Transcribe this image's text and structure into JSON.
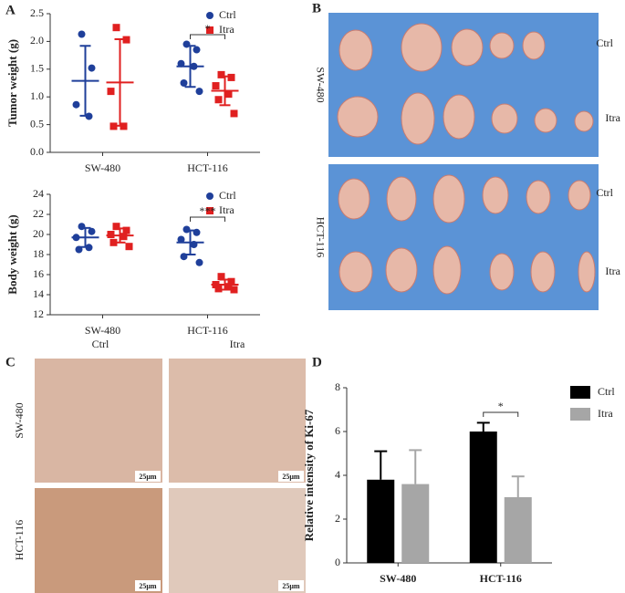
{
  "panel_labels": [
    "A",
    "B",
    "C",
    "D"
  ],
  "chart_data": [
    {
      "type": "scatter",
      "ylabel": "Tumor weight (g)",
      "categories": [
        "SW-480",
        "HCT-116"
      ],
      "ylim": [
        0,
        2.5
      ],
      "yticks": [
        {
          "value": 0,
          "label": "0.0"
        },
        0.5,
        {
          "value": 1,
          "label": "1.0"
        },
        1.5,
        {
          "value": 2,
          "label": "2.0"
        },
        2.5
      ],
      "legend": "top-right",
      "series": [
        {
          "name": "Ctrl",
          "color": "#1f3f9a",
          "marker": "circle",
          "values": [
            [
              2.13,
              1.52,
              0.86,
              0.65
            ],
            [
              1.95,
              1.85,
              1.6,
              1.55,
              1.25,
              1.1
            ]
          ],
          "mean": [
            1.29,
            1.55
          ],
          "error": [
            0.63,
            0.37
          ]
        },
        {
          "name": "Itra",
          "color": "#e02020",
          "marker": "square",
          "values": [
            [
              2.25,
              2.03,
              1.1,
              0.47,
              0.47
            ],
            [
              1.4,
              1.35,
              1.2,
              1.05,
              0.95,
              0.7
            ]
          ],
          "mean": [
            1.26,
            1.11
          ],
          "error": [
            0.78,
            0.26
          ]
        }
      ],
      "annotations": [
        {
          "text": "*",
          "category": "HCT-116"
        }
      ]
    },
    {
      "type": "scatter",
      "ylabel": "Body weight (g)",
      "categories": [
        "SW-480",
        "HCT-116"
      ],
      "ylim": [
        12,
        24
      ],
      "yticks": [
        12,
        14,
        16,
        18,
        20,
        22,
        24
      ],
      "legend": "top-right",
      "series": [
        {
          "name": "Ctrl",
          "color": "#1f3f9a",
          "marker": "circle",
          "values": [
            [
              20.8,
              20.3,
              19.7,
              18.7,
              18.5
            ],
            [
              20.5,
              20.2,
              19.5,
              19,
              17.8,
              17.2
            ]
          ],
          "mean": [
            19.7,
            19.2
          ],
          "error": [
            0.95,
            1.2
          ]
        },
        {
          "name": "Itra",
          "color": "#e02020",
          "marker": "square",
          "values": [
            [
              20.8,
              20.4,
              20,
              19.8,
              19.2,
              18.8
            ],
            [
              15.8,
              15.3,
              15,
              14.8,
              14.6,
              14.5
            ]
          ],
          "mean": [
            19.9,
            15
          ],
          "error": [
            0.7,
            0.5
          ]
        }
      ],
      "annotations": [
        {
          "text": "***",
          "category": "HCT-116"
        }
      ]
    },
    {
      "type": "bar",
      "ylabel": "Relative intensity of Ki-67",
      "categories": [
        "SW-480",
        "HCT-116"
      ],
      "ylim": [
        0,
        8
      ],
      "yticks": [
        0,
        2,
        4,
        6,
        8
      ],
      "legend": "top-right",
      "series": [
        {
          "name": "Ctrl",
          "color": "#000000",
          "values": [
            3.8,
            6.0
          ],
          "error": [
            1.3,
            0.4
          ]
        },
        {
          "name": "Itra",
          "color": "#a6a6a6",
          "values": [
            3.6,
            3.0
          ],
          "error": [
            1.55,
            0.95
          ]
        }
      ],
      "annotations": [
        {
          "text": "*",
          "category": "HCT-116"
        }
      ]
    }
  ],
  "photo_b": {
    "groups": [
      "SW-480",
      "HCT-116"
    ],
    "rows": [
      "Ctrl",
      "Itra",
      "Ctrl",
      "Itra"
    ]
  },
  "photo_c": {
    "columns": [
      "Ctrl",
      "Itra"
    ],
    "rows": [
      "SW-480",
      "HCT-116"
    ],
    "scale_bars": [
      "25μm",
      "25μm",
      "25μm",
      "25μm"
    ]
  }
}
